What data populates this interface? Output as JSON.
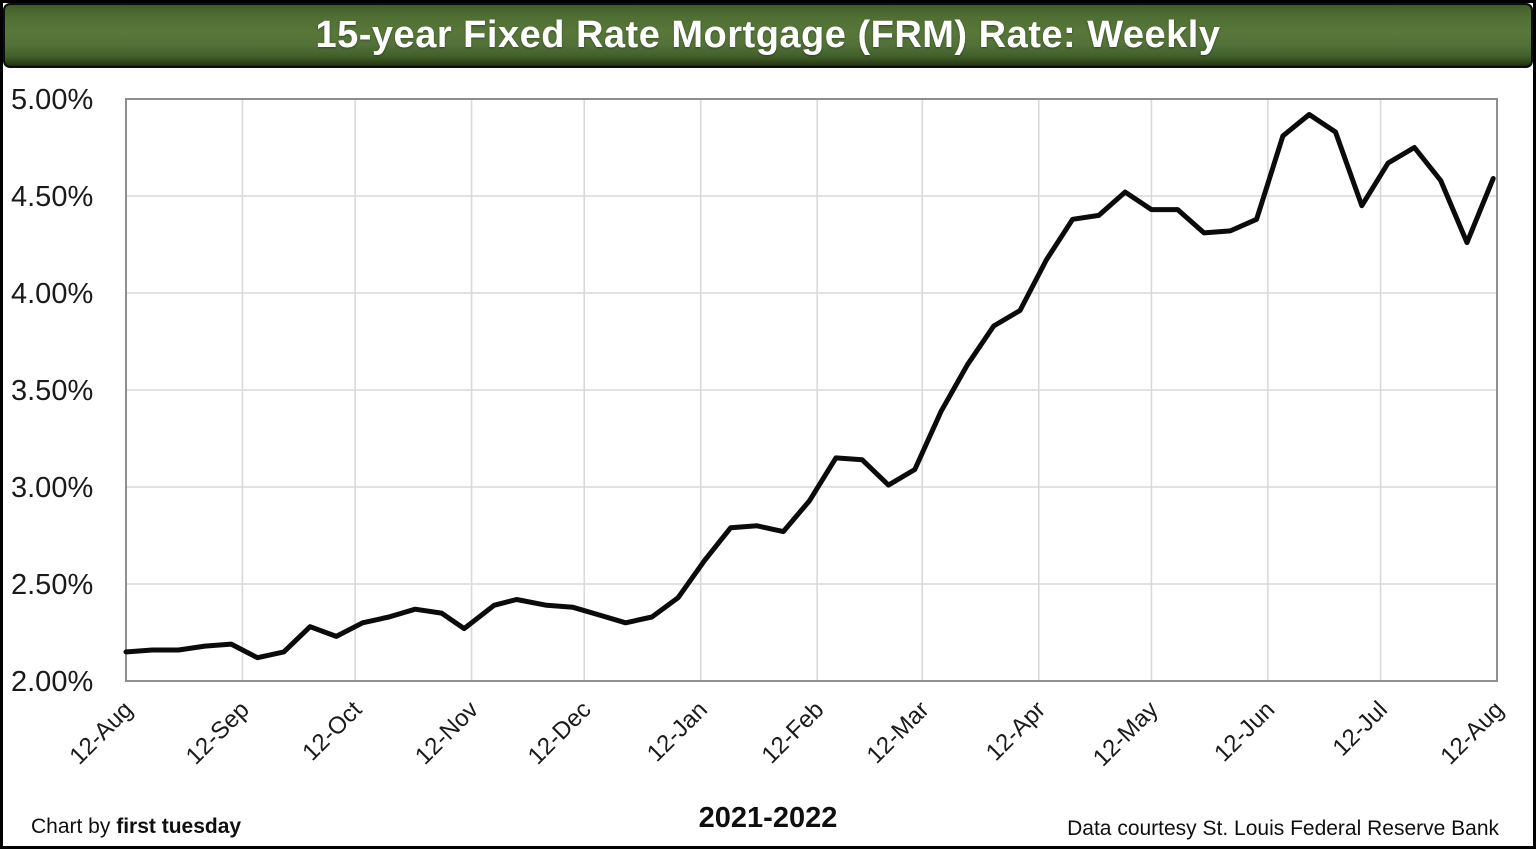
{
  "title": "15-year Fixed Rate Mortgage (FRM) Rate: Weekly",
  "footer": {
    "credit_prefix": "Chart by ",
    "credit_brand": "first tuesday",
    "period": "2021-2022",
    "source": "Data courtesy St. Louis Federal Reserve Bank"
  },
  "colors": {
    "title_background_green": "#53723a",
    "title_text": "#ffffff",
    "series_line": "#0b0b0b",
    "gridline": "#d9d9d9",
    "plot_border": "#8f8f8f",
    "figure_border": "#000000",
    "label_text": "#1a1a1a"
  },
  "chart_data": {
    "type": "line",
    "title": "15-year Fixed Rate Mortgage (FRM) Rate: Weekly",
    "series_name": "15-year FRM rate (weekly)",
    "xlabel": "2021-2022",
    "ylabel": "",
    "ylim": [
      2.0,
      5.0
    ],
    "y_tick_labels": [
      "5.00%",
      "4.50%",
      "4.00%",
      "3.50%",
      "3.00%",
      "2.50%",
      "2.00%"
    ],
    "y_tick_values": [
      5.0,
      4.5,
      4.0,
      3.5,
      3.0,
      2.5,
      2.0
    ],
    "x_tick_labels": [
      "12-Aug",
      "12-Sep",
      "12-Oct",
      "12-Nov",
      "12-Dec",
      "12-Jan",
      "12-Feb",
      "12-Mar",
      "12-Apr",
      "12-May",
      "12-Jun",
      "12-Jul",
      "12-Aug"
    ],
    "x_tick_days_from_start": [
      0,
      31,
      61,
      92,
      122,
      153,
      184,
      212,
      243,
      273,
      304,
      334,
      365
    ],
    "x_axis_span_days": 365,
    "grid": true,
    "legend_position": "none",
    "weeks": [
      "2021-08-12",
      "2021-08-19",
      "2021-08-26",
      "2021-09-02",
      "2021-09-09",
      "2021-09-16",
      "2021-09-23",
      "2021-09-30",
      "2021-10-07",
      "2021-10-14",
      "2021-10-21",
      "2021-10-28",
      "2021-11-04",
      "2021-11-10",
      "2021-11-18",
      "2021-11-24",
      "2021-12-02",
      "2021-12-09",
      "2021-12-16",
      "2021-12-23",
      "2021-12-30",
      "2022-01-06",
      "2022-01-13",
      "2022-01-20",
      "2022-01-27",
      "2022-02-03",
      "2022-02-10",
      "2022-02-17",
      "2022-02-24",
      "2022-03-03",
      "2022-03-10",
      "2022-03-17",
      "2022-03-24",
      "2022-03-31",
      "2022-04-07",
      "2022-04-14",
      "2022-04-21",
      "2022-04-28",
      "2022-05-05",
      "2022-05-12",
      "2022-05-19",
      "2022-05-26",
      "2022-06-02",
      "2022-06-09",
      "2022-06-16",
      "2022-06-23",
      "2022-06-30",
      "2022-07-07",
      "2022-07-14",
      "2022-07-21",
      "2022-07-28",
      "2022-08-04",
      "2022-08-11"
    ],
    "x_days_from_start": [
      0,
      7,
      14,
      21,
      28,
      35,
      42,
      49,
      56,
      63,
      70,
      77,
      84,
      90,
      98,
      104,
      112,
      119,
      126,
      133,
      140,
      147,
      154,
      161,
      168,
      175,
      182,
      189,
      196,
      203,
      210,
      217,
      224,
      231,
      238,
      245,
      252,
      259,
      266,
      273,
      280,
      287,
      294,
      301,
      308,
      315,
      322,
      329,
      336,
      343,
      350,
      357,
      364
    ],
    "values": [
      2.15,
      2.16,
      2.16,
      2.18,
      2.19,
      2.12,
      2.15,
      2.28,
      2.23,
      2.3,
      2.33,
      2.37,
      2.35,
      2.27,
      2.39,
      2.42,
      2.39,
      2.38,
      2.34,
      2.3,
      2.33,
      2.43,
      2.62,
      2.79,
      2.8,
      2.77,
      2.93,
      3.15,
      3.14,
      3.01,
      3.09,
      3.39,
      3.63,
      3.83,
      3.91,
      4.17,
      4.38,
      4.4,
      4.52,
      4.43,
      4.43,
      4.31,
      4.32,
      4.38,
      4.81,
      4.92,
      4.83,
      4.45,
      4.67,
      4.75,
      4.58,
      4.26,
      4.59
    ]
  }
}
